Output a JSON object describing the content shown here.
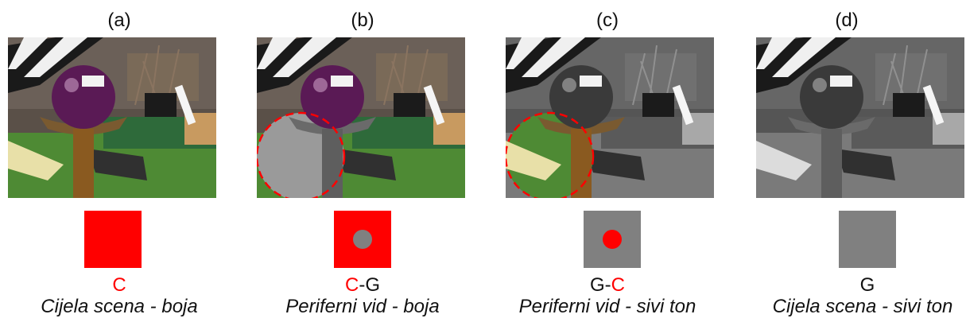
{
  "colors": {
    "accent": "#ff0000",
    "gray": "#808080"
  },
  "panels": [
    {
      "label": "(a)",
      "code_parts": [
        "C"
      ],
      "caption": "Cijela scena - boja",
      "photo": "color",
      "square": "red",
      "dot": null,
      "ring": false
    },
    {
      "label": "(b)",
      "code_parts": [
        "C",
        "-G"
      ],
      "caption": "Periferni vid - boja",
      "photo": "color",
      "square": "red",
      "dot": "gray",
      "ring": true
    },
    {
      "label": "(c)",
      "code_parts": [
        "G-",
        "C"
      ],
      "caption": "Periferni vid - sivi ton",
      "photo": "grayscale",
      "square": "gray",
      "dot": "red",
      "ring": true
    },
    {
      "label": "(d)",
      "code_parts": [
        "G"
      ],
      "caption": "Cijela scena - sivi ton",
      "photo": "grayscale",
      "square": "gray",
      "dot": null,
      "ring": false
    }
  ]
}
